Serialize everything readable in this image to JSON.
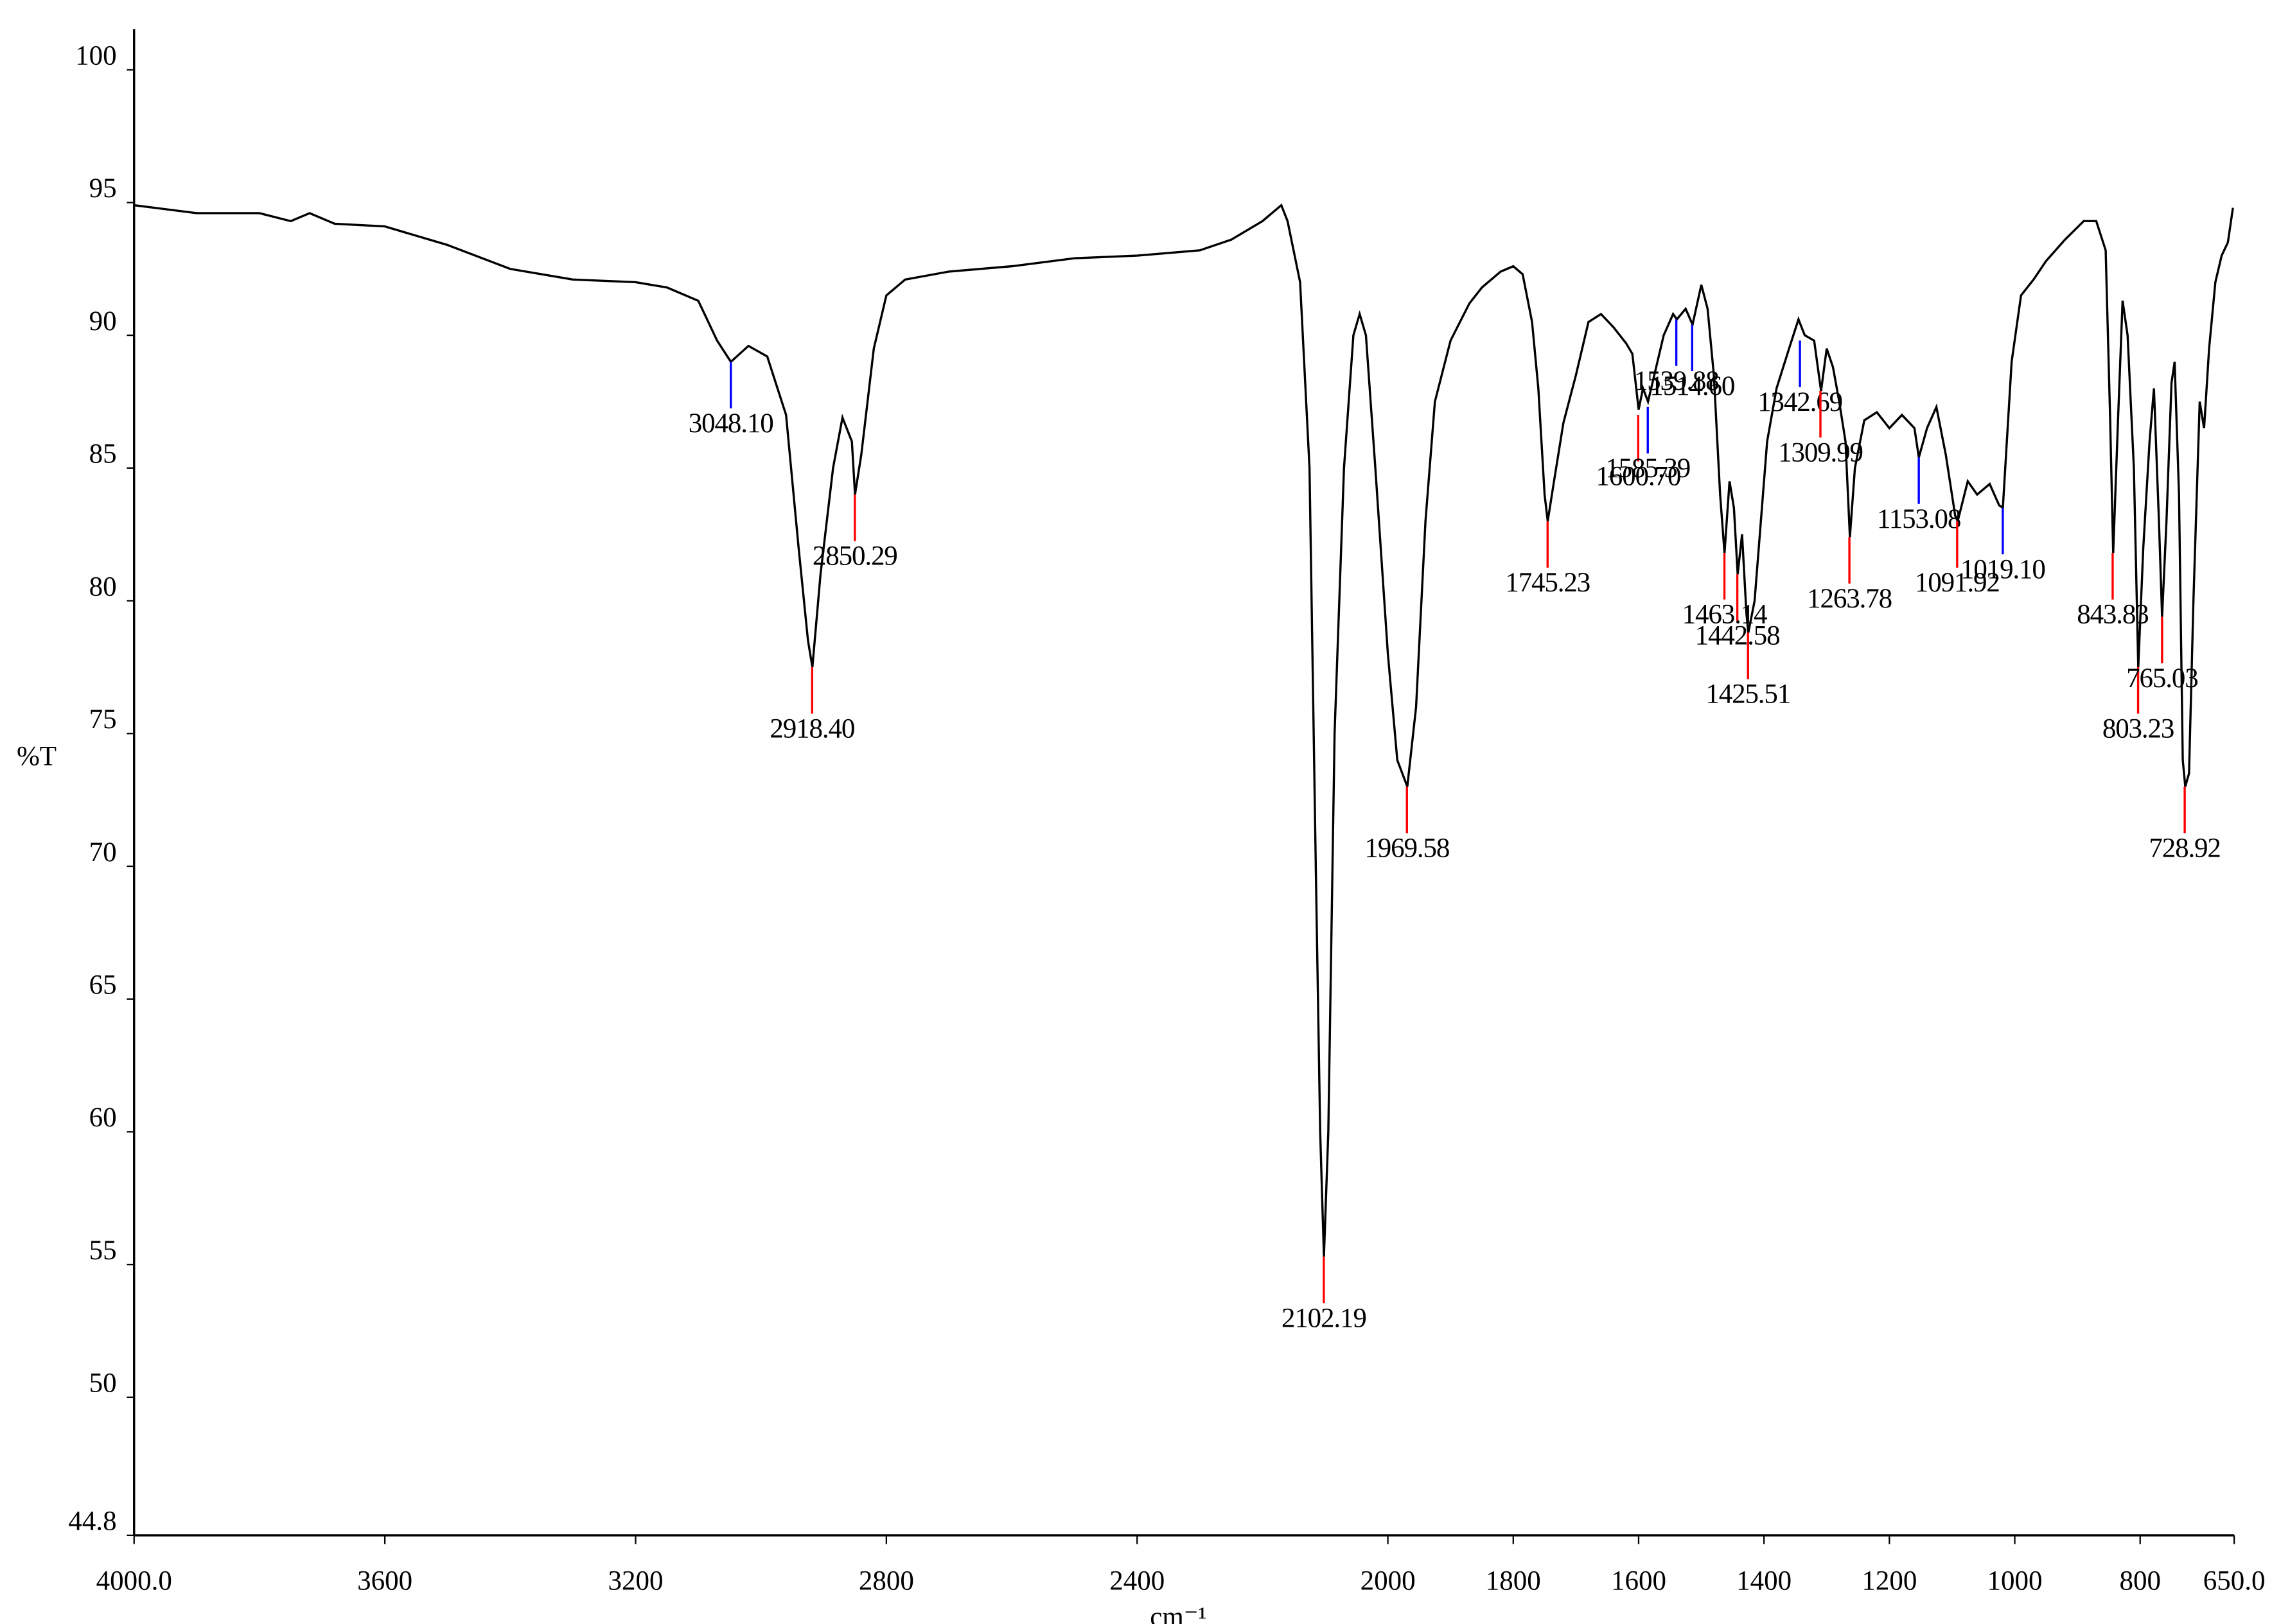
{
  "chart_data": {
    "type": "line",
    "x_label": "cm⁻¹",
    "y_label": "%T",
    "xlim": [
      4000,
      650
    ],
    "ylim": [
      44.8,
      100
    ],
    "xticks": [
      {
        "value": 4000,
        "label": "4000.0"
      },
      3600,
      3200,
      2800,
      2400,
      2000,
      1800,
      1600,
      1400,
      1200,
      1000,
      800,
      {
        "value": 650,
        "label": "650.0"
      }
    ],
    "yticks": [
      44.8,
      50,
      55,
      60,
      65,
      70,
      75,
      80,
      85,
      90,
      95,
      100
    ],
    "x": [
      4000,
      3900,
      3800,
      3750,
      3720,
      3680,
      3600,
      3500,
      3400,
      3300,
      3200,
      3150,
      3100,
      3070,
      3048,
      3020,
      2990,
      2960,
      2940,
      2925,
      2918,
      2905,
      2885,
      2870,
      2855,
      2850,
      2840,
      2820,
      2800,
      2770,
      2700,
      2600,
      2500,
      2400,
      2300,
      2250,
      2200,
      2170,
      2160,
      2140,
      2125,
      2115,
      2108,
      2102,
      2095,
      2085,
      2070,
      2055,
      2045,
      2035,
      2020,
      2000,
      1985,
      1969,
      1955,
      1940,
      1925,
      1900,
      1870,
      1850,
      1820,
      1800,
      1785,
      1770,
      1760,
      1750,
      1745,
      1735,
      1720,
      1700,
      1680,
      1660,
      1640,
      1620,
      1610,
      1600,
      1593,
      1585,
      1575,
      1560,
      1545,
      1539,
      1525,
      1514,
      1500,
      1490,
      1480,
      1470,
      1463,
      1455,
      1448,
      1442,
      1435,
      1428,
      1425,
      1415,
      1405,
      1395,
      1380,
      1360,
      1345,
      1335,
      1320,
      1309,
      1300,
      1290,
      1280,
      1270,
      1263,
      1255,
      1240,
      1220,
      1200,
      1180,
      1160,
      1153,
      1140,
      1125,
      1110,
      1095,
      1091,
      1075,
      1060,
      1040,
      1025,
      1019,
      1005,
      990,
      970,
      950,
      920,
      890,
      870,
      855,
      848,
      843,
      835,
      828,
      820,
      810,
      803,
      795,
      785,
      778,
      770,
      765,
      758,
      750,
      745,
      738,
      732,
      728,
      722,
      715,
      705,
      698,
      690,
      680,
      670,
      660,
      652
    ],
    "series": [
      {
        "color": "#000000",
        "values": [
          94.9,
          94.6,
          94.6,
          94.3,
          94.6,
          94.2,
          94.1,
          93.4,
          92.5,
          92.1,
          92.0,
          91.8,
          91.3,
          89.8,
          89.0,
          89.6,
          89.2,
          87.0,
          82,
          78.5,
          77.5,
          81,
          85,
          86.9,
          86,
          84,
          85.5,
          89.5,
          91.5,
          92.1,
          92.4,
          92.6,
          92.9,
          93.0,
          93.2,
          93.6,
          94.3,
          94.9,
          94.3,
          92.0,
          85,
          70,
          60,
          55.3,
          60,
          75,
          85,
          90.0,
          90.8,
          90,
          85,
          78,
          74,
          73,
          76,
          83,
          87.5,
          89.8,
          91.2,
          91.8,
          92.4,
          92.6,
          92.3,
          90.5,
          88,
          84,
          83,
          84.5,
          86.7,
          88.5,
          90.5,
          90.8,
          90.3,
          89.7,
          89.3,
          87.2,
          88.0,
          87.5,
          88.5,
          90.0,
          90.8,
          90.6,
          91.0,
          90.4,
          91.9,
          91.0,
          88.5,
          84,
          81.8,
          84.5,
          83.5,
          81.0,
          82.5,
          79.5,
          78.8,
          80,
          83,
          86,
          88.0,
          89.5,
          90.6,
          90.0,
          89.8,
          87.9,
          89.5,
          88.8,
          87.5,
          86,
          82.4,
          85.0,
          86.8,
          87.1,
          86.5,
          87.0,
          86.5,
          85.4,
          86.5,
          87.3,
          85.5,
          83.2,
          83.0,
          84.5,
          84.0,
          84.4,
          83.6,
          83.5,
          89,
          91.5,
          92.1,
          92.8,
          93.6,
          94.3,
          94.3,
          93.2,
          87,
          81.8,
          87,
          91.3,
          90,
          85,
          77.5,
          82,
          86,
          88,
          83,
          79.4,
          83,
          88.2,
          89.0,
          84,
          74,
          73,
          73.5,
          80,
          87.5,
          86.5,
          89.5,
          92,
          93.0,
          93.5,
          94.8
        ]
      }
    ],
    "peaks": [
      {
        "x": 3048.1,
        "y": 89,
        "label": "3048.10",
        "color": "#0000ff"
      },
      {
        "x": 2850.29,
        "y": 84,
        "label": "2850.29",
        "color": "#ff0000"
      },
      {
        "x": 2918.4,
        "y": 77.5,
        "label": "2918.40",
        "color": "#ff0000"
      },
      {
        "x": 2102.19,
        "y": 55.3,
        "label": "2102.19",
        "color": "#ff0000"
      },
      {
        "x": 1969.58,
        "y": 73,
        "label": "1969.58",
        "color": "#ff0000"
      },
      {
        "x": 1745.23,
        "y": 83,
        "label": "1745.23",
        "color": "#ff0000"
      },
      {
        "x": 1600.7,
        "y": 87,
        "label": "1600.70",
        "color": "#ff0000"
      },
      {
        "x": 1585.39,
        "y": 87.3,
        "label": "1585.39",
        "color": "#0000ff"
      },
      {
        "x": 1539.88,
        "y": 90.6,
        "label": "1539.88",
        "color": "#0000ff"
      },
      {
        "x": 1514.6,
        "y": 90.4,
        "label": "1514.60",
        "color": "#0000ff"
      },
      {
        "x": 1463.14,
        "y": 81.8,
        "label": "1463.14",
        "color": "#ff0000"
      },
      {
        "x": 1442.58,
        "y": 81,
        "label": "1442.58",
        "color": "#ff0000"
      },
      {
        "x": 1425.51,
        "y": 78.8,
        "label": "1425.51",
        "color": "#ff0000"
      },
      {
        "x": 1342.69,
        "y": 89.8,
        "label": "1342.69",
        "color": "#0000ff"
      },
      {
        "x": 1309.99,
        "y": 87.9,
        "label": "1309.99",
        "color": "#ff0000"
      },
      {
        "x": 1263.78,
        "y": 82.4,
        "label": "1263.78",
        "color": "#ff0000"
      },
      {
        "x": 1153.08,
        "y": 85.4,
        "label": "1153.08",
        "color": "#0000ff"
      },
      {
        "x": 1091.92,
        "y": 83,
        "label": "1091.92",
        "color": "#ff0000"
      },
      {
        "x": 1019.1,
        "y": 83.5,
        "label": "1019.10",
        "color": "#0000ff"
      },
      {
        "x": 843.83,
        "y": 81.8,
        "label": "843.83",
        "color": "#ff0000"
      },
      {
        "x": 803.23,
        "y": 77.5,
        "label": "803.23",
        "color": "#ff0000"
      },
      {
        "x": 765.03,
        "y": 79.4,
        "label": "765.03",
        "color": "#ff0000"
      },
      {
        "x": 728.92,
        "y": 73,
        "label": "728.92",
        "color": "#ff0000"
      }
    ]
  }
}
